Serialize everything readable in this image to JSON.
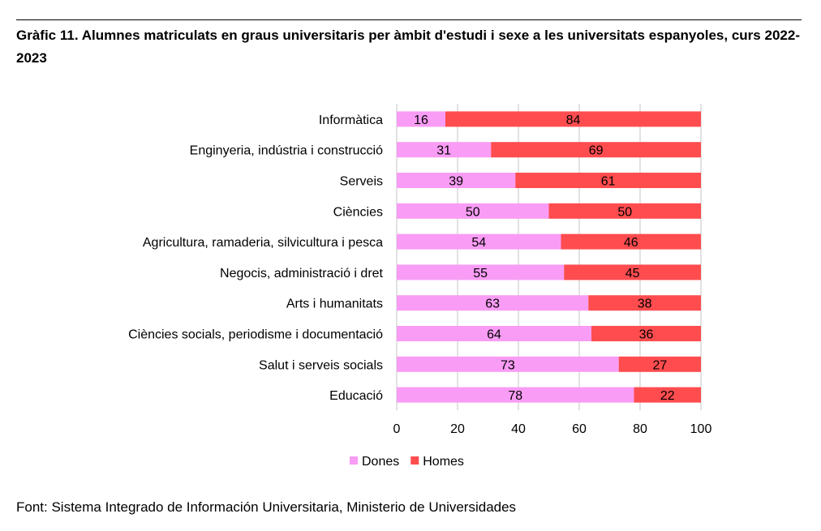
{
  "title": "Gràfic 11. Alumnes matriculats en graus universitaris per àmbit d'estudi i sexe a les universitats espanyoles, curs 2022-2023",
  "source": "Font: Sistema Integrado de Información Universitaria, Ministerio de Universidades",
  "colors": {
    "dones": "#F99CF5",
    "homes": "#FF4C4F",
    "grid": "#d9d9d9"
  },
  "chart_data": {
    "type": "bar",
    "orientation": "horizontal",
    "stacked": true,
    "categories": [
      "Informàtica",
      "Enginyeria, indústria i construcció",
      "Serveis",
      "Ciències",
      "Agricultura, ramaderia, silvicultura i pesca",
      "Negocis, administració i dret",
      "Arts i humanitats",
      "Ciències socials, periodisme i documentació",
      "Salut i serveis socials",
      "Educació"
    ],
    "series": [
      {
        "name": "Dones",
        "values": [
          16,
          31,
          39,
          50,
          54,
          55,
          63,
          64,
          73,
          78
        ]
      },
      {
        "name": "Homes",
        "values": [
          84,
          69,
          61,
          50,
          46,
          45,
          38,
          36,
          27,
          22
        ]
      }
    ],
    "xlim": [
      0,
      100
    ],
    "xticks": [
      0,
      20,
      40,
      60,
      80,
      100
    ],
    "grid": "vertical",
    "legend": "bottom"
  }
}
